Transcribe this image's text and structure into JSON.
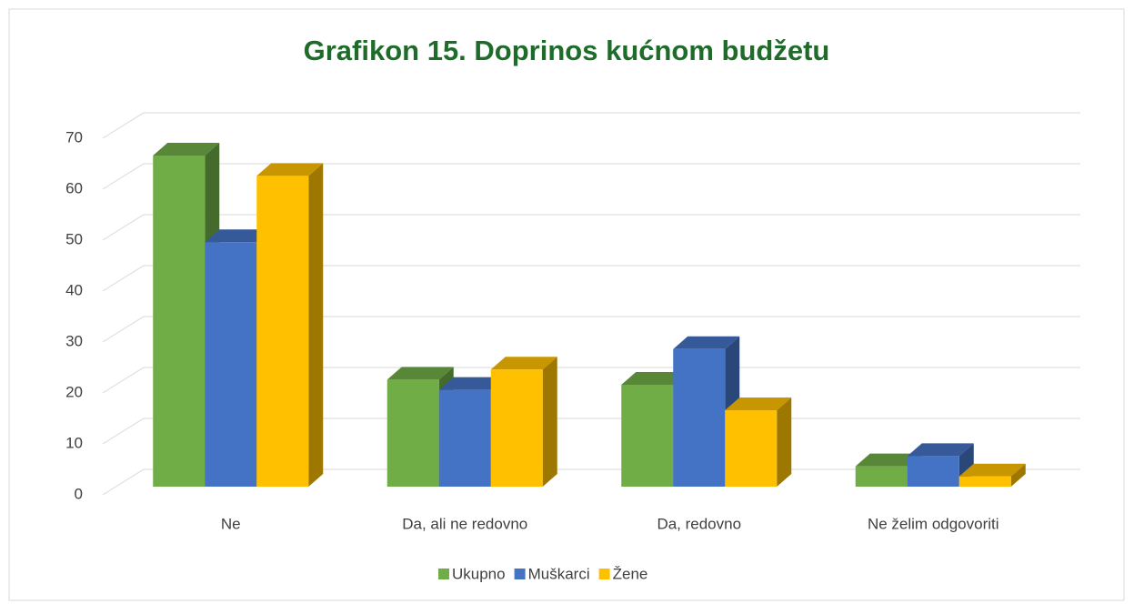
{
  "chart_data": {
    "type": "bar3d",
    "title": "Grafikon 15. Doprinos kućnom budžetu",
    "categories": [
      "Ne",
      "Da, ali ne redovno",
      "Da, redovno",
      "Ne želim odgovoriti"
    ],
    "series": [
      {
        "name": "Ukupno",
        "color": "#70ad47",
        "values": [
          65,
          21,
          20,
          4
        ]
      },
      {
        "name": "Muškarci",
        "color": "#4472c4",
        "values": [
          48,
          19,
          27,
          6
        ]
      },
      {
        "name": "Žene",
        "color": "#ffc000",
        "values": [
          61,
          23,
          15,
          2
        ]
      }
    ],
    "ylim": [
      0,
      70
    ],
    "yticks": [
      0,
      10,
      20,
      30,
      40,
      50,
      60,
      70
    ],
    "grid": true,
    "legend": "bottom"
  }
}
